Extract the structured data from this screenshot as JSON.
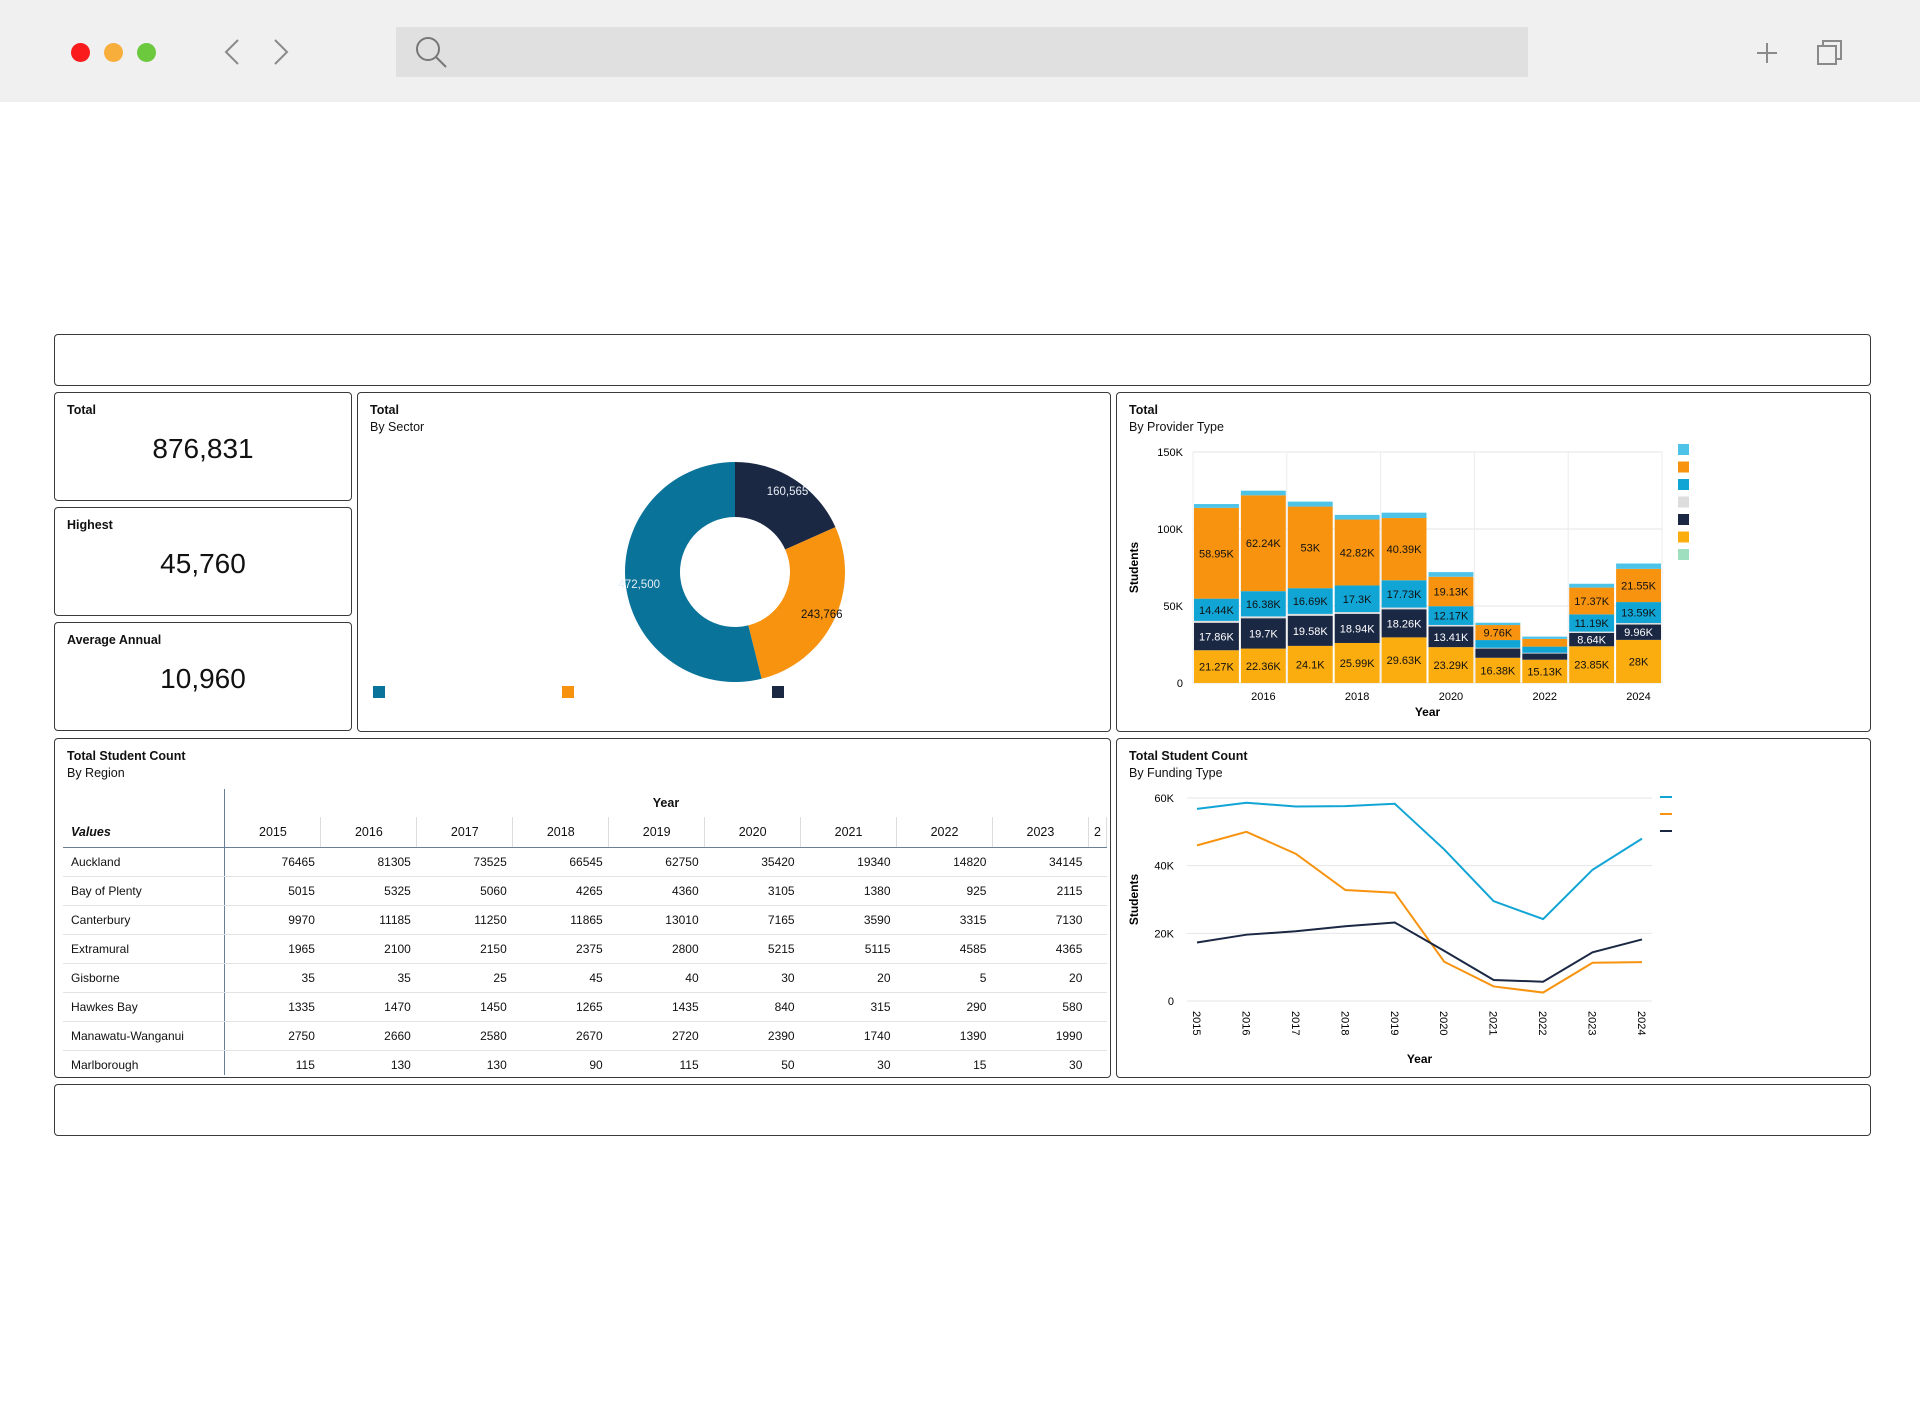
{
  "browser": {
    "url_placeholder": ""
  },
  "kpis": [
    {
      "label": "Total",
      "value": "876,831"
    },
    {
      "label": "Highest",
      "value": "45,760"
    },
    {
      "label": "Average Annual",
      "value": "10,960"
    }
  ],
  "sector_chart": {
    "title": "Total",
    "subtitle": "By Sector",
    "colors": [
      "#0a7399",
      "#f7930f",
      "#1b2844"
    ],
    "chart_data": {
      "type": "pie",
      "values": [
        472500,
        243766,
        160565
      ],
      "labels": [
        "472,500",
        "243,766",
        "160,565"
      ],
      "legend": [
        "",
        "",
        ""
      ],
      "donut": true
    }
  },
  "provider_chart": {
    "title": "Total",
    "subtitle": "By Provider Type",
    "legend_colors": [
      "#4ec3e8",
      "#f7930f",
      "#11a5d6",
      "#dddddd",
      "#1b2844",
      "#fbac0f",
      "#9ddfbe"
    ],
    "chart_data": {
      "type": "bar",
      "stacked": true,
      "categories": [
        "2015",
        "2016",
        "2017",
        "2018",
        "2019",
        "2020",
        "2021",
        "2022",
        "2023",
        "2024"
      ],
      "xlabel": "Year",
      "ylabel": "Students",
      "ylim": [
        0,
        150000
      ],
      "yticks": [
        "0",
        "50K",
        "100K",
        "150K"
      ],
      "xticks": [
        "2016",
        "2018",
        "2020",
        "2022",
        "2024"
      ],
      "series": [
        {
          "color": "#fbac0f",
          "values": [
            21270,
            22360,
            24100,
            25990,
            29630,
            23290,
            16380,
            15130,
            23850,
            28000
          ],
          "labels": [
            "21.27K",
            "22.36K",
            "24.1K",
            "25.99K",
            "29.63K",
            "23.29K",
            "16.38K",
            "15.13K",
            "23.85K",
            "28K"
          ]
        },
        {
          "color": "#1b2844",
          "values": [
            17860,
            19700,
            19580,
            18940,
            18260,
            13410,
            6000,
            4000,
            8640,
            9960
          ],
          "labels": [
            "17.86K",
            "19.7K",
            "19.58K",
            "18.94K",
            "18.26K",
            "13.41K",
            "",
            "",
            "8.64K",
            "9.96K"
          ]
        },
        {
          "color": "#dddddd",
          "values": [
            1200,
            1200,
            1200,
            1100,
            1100,
            1000,
            500,
            500,
            900,
            1000
          ],
          "labels": [
            "",
            "",
            "",
            "",
            "",
            "",
            "",
            "",
            "",
            ""
          ]
        },
        {
          "color": "#11a5d6",
          "values": [
            14440,
            16380,
            16690,
            17300,
            17730,
            12170,
            5000,
            4000,
            11190,
            13590
          ],
          "labels": [
            "14.44K",
            "16.38K",
            "16.69K",
            "17.3K",
            "17.73K",
            "12.17K",
            "",
            "",
            "11.19K",
            "13.59K"
          ]
        },
        {
          "color": "#f7930f",
          "values": [
            58950,
            62240,
            53000,
            42820,
            40390,
            19130,
            9760,
            5000,
            17370,
            21550
          ],
          "labels": [
            "58.95K",
            "62.24K",
            "53K",
            "42.82K",
            "40.39K",
            "19.13K",
            "9.76K",
            "",
            "17.37K",
            "21.55K"
          ]
        },
        {
          "color": "#4ec3e8",
          "values": [
            2500,
            3000,
            3200,
            3000,
            3500,
            3000,
            1500,
            1500,
            2500,
            3500
          ],
          "labels": [
            "",
            "",
            "",
            "",
            "",
            "",
            "",
            "",
            "",
            ""
          ]
        }
      ]
    }
  },
  "region_table": {
    "title": "Total Student Count",
    "subtitle": "By Region",
    "year_header": "Year",
    "values_header": "Values",
    "columns": [
      "2015",
      "2016",
      "2017",
      "2018",
      "2019",
      "2020",
      "2021",
      "2022",
      "2023",
      "2"
    ],
    "rows": [
      {
        "region": "Auckland",
        "values": [
          "76465",
          "81305",
          "73525",
          "66545",
          "62750",
          "35420",
          "19340",
          "14820",
          "34145"
        ]
      },
      {
        "region": "Bay of Plenty",
        "values": [
          "5015",
          "5325",
          "5060",
          "4265",
          "4360",
          "3105",
          "1380",
          "925",
          "2115"
        ]
      },
      {
        "region": "Canterbury",
        "values": [
          "9970",
          "11185",
          "11250",
          "11865",
          "13010",
          "7165",
          "3590",
          "3315",
          "7130"
        ]
      },
      {
        "region": "Extramural",
        "values": [
          "1965",
          "2100",
          "2150",
          "2375",
          "2800",
          "5215",
          "5115",
          "4585",
          "4365"
        ]
      },
      {
        "region": "Gisborne",
        "values": [
          "35",
          "35",
          "25",
          "45",
          "40",
          "30",
          "20",
          "5",
          "20"
        ]
      },
      {
        "region": "Hawkes Bay",
        "values": [
          "1335",
          "1470",
          "1450",
          "1265",
          "1435",
          "840",
          "315",
          "290",
          "580"
        ]
      },
      {
        "region": "Manawatu-Wanganui",
        "values": [
          "2750",
          "2660",
          "2580",
          "2670",
          "2720",
          "2390",
          "1740",
          "1390",
          "1990"
        ]
      },
      {
        "region": "Marlborough",
        "values": [
          "115",
          "130",
          "130",
          "90",
          "115",
          "50",
          "30",
          "15",
          "30"
        ]
      }
    ]
  },
  "funding_chart": {
    "title": "Total Student Count",
    "subtitle": "By Funding Type",
    "chart_data": {
      "type": "line",
      "x": [
        "2015",
        "2016",
        "2017",
        "2018",
        "2019",
        "2020",
        "2021",
        "2022",
        "2023",
        "2024"
      ],
      "xlabel": "Year",
      "ylabel": "Students",
      "ylim": [
        0,
        60000
      ],
      "yticks": [
        "0",
        "20K",
        "40K",
        "60K"
      ],
      "series": [
        {
          "color": "#11a5d6",
          "values": [
            56800,
            58600,
            57500,
            57600,
            58300,
            44800,
            29500,
            24200,
            38800,
            48000
          ]
        },
        {
          "color": "#f7930f",
          "values": [
            46000,
            50000,
            43500,
            32800,
            32000,
            11600,
            4300,
            2500,
            11300,
            11500
          ]
        },
        {
          "color": "#1b2844",
          "values": [
            17300,
            19600,
            20600,
            22100,
            23200,
            14800,
            6200,
            5700,
            14400,
            18200
          ]
        }
      ]
    }
  }
}
